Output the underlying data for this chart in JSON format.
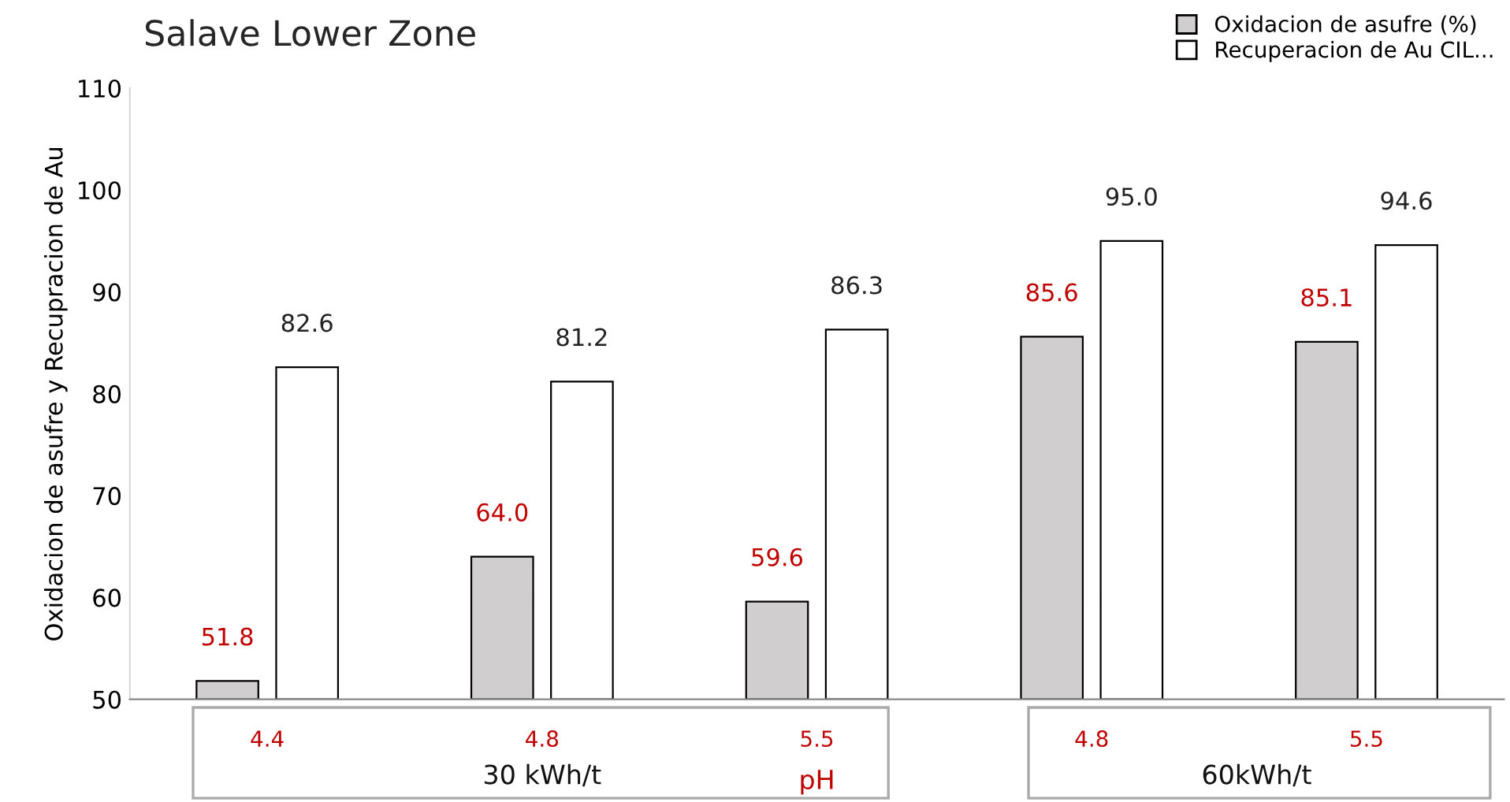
{
  "chart_data": {
    "type": "bar",
    "title": "Salave Lower Zone",
    "ylabel": "Oxidacion de asufre y Recupracion de Au",
    "categories": [
      "4.4",
      "4.8",
      "5.5",
      "4.8",
      "5.5"
    ],
    "series": [
      {
        "name": "Oxidacion de asufre (%)",
        "color": "#d0cece",
        "values": [
          51.8,
          64.0,
          59.6,
          85.6,
          85.1
        ],
        "value_labels": [
          "51.8",
          "64.0",
          "59.6",
          "85.6",
          "85.1"
        ]
      },
      {
        "name": "Recuperacion de Au CIL...",
        "color": "#ffffff",
        "values": [
          82.6,
          81.2,
          86.3,
          95.0,
          94.6
        ],
        "value_labels": [
          "82.6",
          "81.2",
          "86.3",
          "95.0",
          "94.6"
        ]
      }
    ],
    "ylim": [
      50,
      110
    ],
    "yticks": [
      50,
      60,
      70,
      80,
      90,
      100,
      110
    ],
    "grid": false,
    "legend": "top right",
    "annotations": [
      "30 kWh/t",
      "pH",
      "60kWh/t"
    ]
  }
}
